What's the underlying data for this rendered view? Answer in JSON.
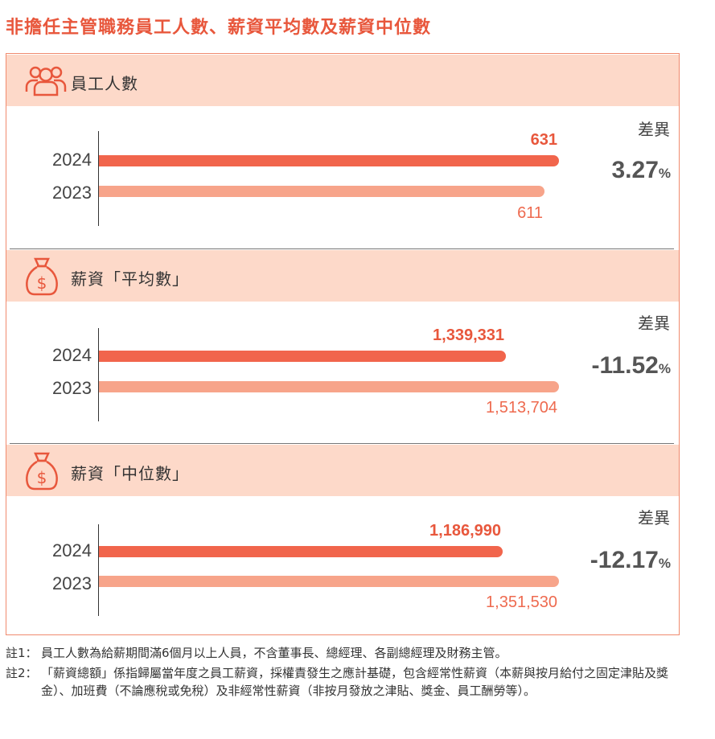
{
  "title": "非擔任主管職務員工人數、薪資平均數及薪資中位數",
  "diff_label": "差異",
  "colors": {
    "bar_2024": "#f1654c",
    "bar_2023": "#f7a48a",
    "accent": "#e8573c",
    "band": "#fdd9c9"
  },
  "sections": [
    {
      "label": "員工人數",
      "icon": "people-icon",
      "diff": "3.27",
      "diff_unit": "%",
      "rows": [
        {
          "year": "2024",
          "value": 631,
          "label": "631"
        },
        {
          "year": "2023",
          "value": 611,
          "label": "611"
        }
      ]
    },
    {
      "label": "薪資「平均數」",
      "icon": "money-bag-icon",
      "diff": "-11.52",
      "diff_unit": "%",
      "rows": [
        {
          "year": "2024",
          "value": 1339331,
          "label": "1,339,331"
        },
        {
          "year": "2023",
          "value": 1513704,
          "label": "1,513,704"
        }
      ]
    },
    {
      "label": "薪資「中位數」",
      "icon": "money-bag-icon",
      "diff": "-12.17",
      "diff_unit": "%",
      "rows": [
        {
          "year": "2024",
          "value": 1186990,
          "label": "1,186,990"
        },
        {
          "year": "2023",
          "value": 1351530,
          "label": "1,351,530"
        }
      ]
    }
  ],
  "notes": [
    {
      "tag": "註1：",
      "text": "員工人數為給薪期間滿6個月以上人員，不含董事長、總經理、各副總經理及財務主管。"
    },
    {
      "tag": "註2：",
      "text": "「薪資總額」係指歸屬當年度之員工薪資，採權責發生之應計基礎，包含經常性薪資（本薪與按月給付之固定津貼及獎金）、加班費（不論應稅或免稅）及非經常性薪資（非按月發放之津貼、獎金、員工酬勞等）。"
    }
  ],
  "chart_data": [
    {
      "type": "bar",
      "title": "員工人數",
      "categories": [
        "2024",
        "2023"
      ],
      "values": [
        631,
        611
      ],
      "difference": "3.27%"
    },
    {
      "type": "bar",
      "title": "薪資「平均數」",
      "categories": [
        "2024",
        "2023"
      ],
      "values": [
        1339331,
        1513704
      ],
      "difference": "-11.52%"
    },
    {
      "type": "bar",
      "title": "薪資「中位數」",
      "categories": [
        "2024",
        "2023"
      ],
      "values": [
        1186990,
        1351530
      ],
      "difference": "-12.17%"
    }
  ]
}
